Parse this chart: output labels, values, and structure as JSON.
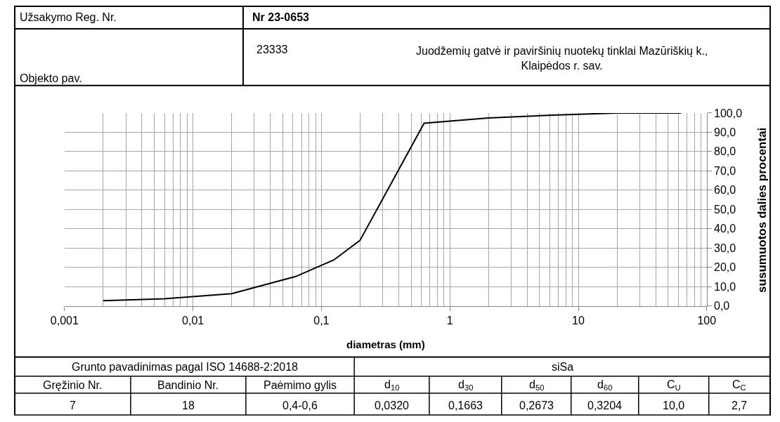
{
  "chart_data": {
    "type": "line",
    "xlabel": "diametras (mm)",
    "ylabel": "susumuotos dalies procentai",
    "x": [
      0.002,
      0.006,
      0.02,
      0.063,
      0.125,
      0.2,
      0.63,
      2,
      6.3,
      20,
      63
    ],
    "series": [
      {
        "color": "#000000",
        "values": [
          2.7,
          3.7,
          6.3,
          15.2,
          23.8,
          34.0,
          94.7,
          97.4,
          98.9,
          100,
          100
        ]
      }
    ],
    "log": "x",
    "grid": true,
    "marker": "none",
    "line_style": "solid",
    "legend": false,
    "xlim": [
      0.001,
      100
    ],
    "xticks": [
      {
        "value": 0.001,
        "label": "0,001"
      },
      {
        "value": 0.01,
        "label": "0,01"
      },
      {
        "value": 0.1,
        "label": "0,1"
      },
      1,
      10,
      100
    ],
    "ylim": [
      0,
      100
    ],
    "yticks": [
      {
        "value": 0,
        "label": "0,0"
      },
      {
        "value": 10,
        "label": "10,0"
      },
      {
        "value": 20,
        "label": "20,0"
      },
      {
        "value": 30,
        "label": "30,0"
      },
      {
        "value": 40,
        "label": "40,0"
      },
      {
        "value": 50,
        "label": "50,0"
      },
      {
        "value": 60,
        "label": "60,0"
      },
      {
        "value": 70,
        "label": "70,0"
      },
      {
        "value": 80,
        "label": "80,0"
      },
      {
        "value": 90,
        "label": "90,0"
      },
      {
        "value": 100,
        "label": "100,0"
      }
    ],
    "annotations": [
      "Užsakymo Reg. Nr.",
      "Nr 23-0653",
      "Objekto pav.",
      "23333",
      "Juodžemių gatvė ir paviršinių nuotekų tinklai Mazūriškių k.,\nKlaipėdos r. sav.",
      "Grunto pavadinimas pagal ISO 14688-2:2018",
      "siSa",
      "Gręžinio Nr.",
      "Bandinio Nr.",
      "Paėmimo gylis",
      "d$_{10}$",
      "d$_{30}$",
      "d$_{50}$",
      "d$_{60}$",
      "C$_{U}$",
      "C$_{C}$",
      "7",
      "18",
      "0,4-0,6",
      "0,0320",
      "0,1663",
      "0,2673",
      "0,3204",
      "10,0",
      "2,7"
    ]
  }
}
